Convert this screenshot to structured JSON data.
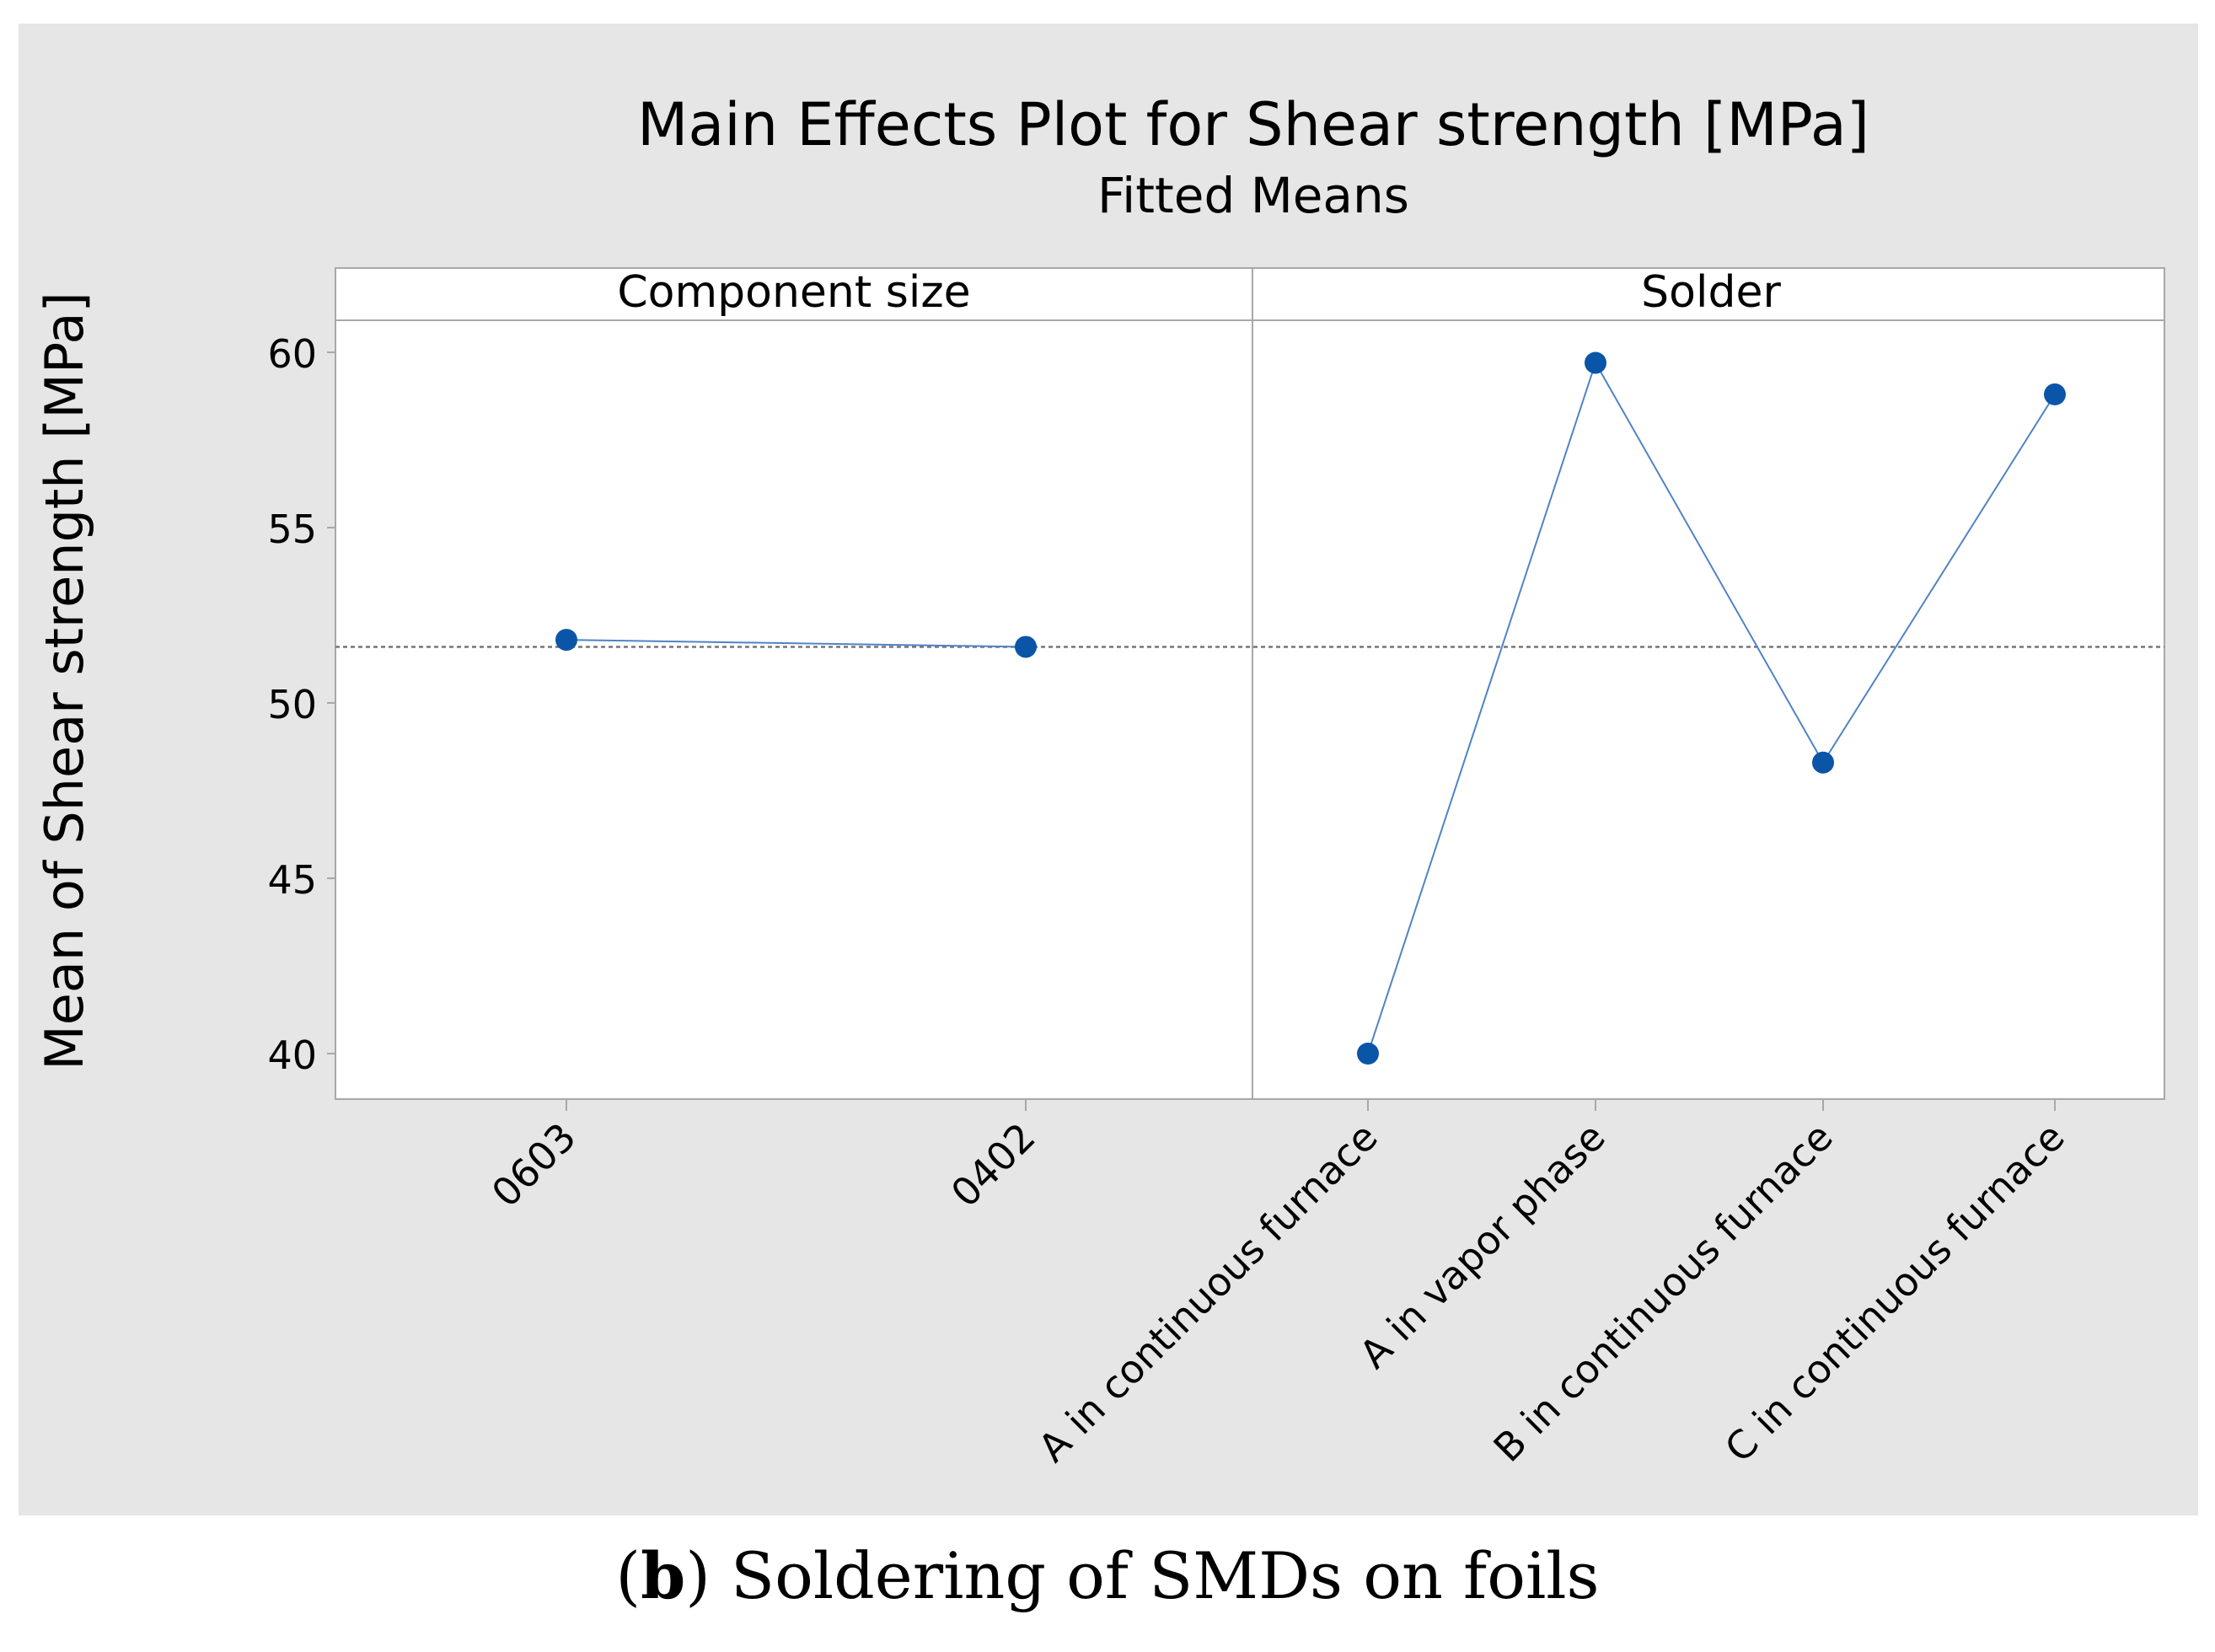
{
  "caption": {
    "letter": "b",
    "open_paren": "(",
    "close_paren": ")",
    "text": " Soldering of SMDs on foils"
  },
  "colors": {
    "background": "#e6e6e6",
    "plot_bg": "#ffffff",
    "series": "#0a55a8",
    "line": "#4f84c4",
    "reference": "#777777"
  },
  "chart_data": {
    "type": "line",
    "title": "Main Effects Plot for Shear strength [MPa]",
    "subtitle": "Fitted Means",
    "ylabel": "Mean of Shear strength [MPa]",
    "xlabel": "",
    "ylim": [
      38.7,
      62.5
    ],
    "yticks": [
      40,
      45,
      50,
      55,
      60
    ],
    "grid": false,
    "reference_line": 51.6,
    "panels": [
      {
        "name": "Component size",
        "categories": [
          "0603",
          "0402"
        ],
        "values": [
          51.8,
          51.6
        ]
      },
      {
        "name": "Solder",
        "categories": [
          "A in continuous furnace",
          "A in vapor phase",
          "B in continuous furnace",
          "C in continuous furnace"
        ],
        "values": [
          40.0,
          59.7,
          48.3,
          58.8
        ]
      }
    ]
  }
}
